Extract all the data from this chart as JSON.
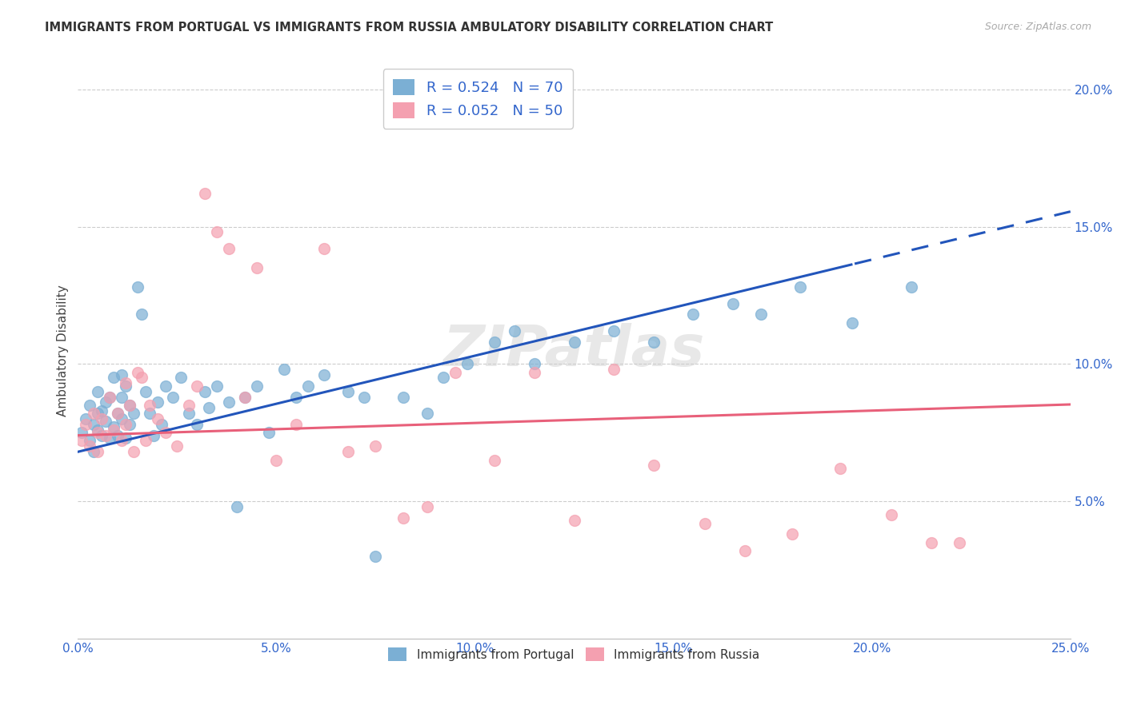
{
  "title": "IMMIGRANTS FROM PORTUGAL VS IMMIGRANTS FROM RUSSIA AMBULATORY DISABILITY CORRELATION CHART",
  "source": "Source: ZipAtlas.com",
  "ylabel": "Ambulatory Disability",
  "xlim": [
    0.0,
    0.25
  ],
  "ylim": [
    0.0,
    0.21
  ],
  "xticks": [
    0.0,
    0.05,
    0.1,
    0.15,
    0.2,
    0.25
  ],
  "yticks": [
    0.05,
    0.1,
    0.15,
    0.2
  ],
  "ytick_labels": [
    "5.0%",
    "10.0%",
    "15.0%",
    "20.0%"
  ],
  "xtick_labels": [
    "0.0%",
    "5.0%",
    "10.0%",
    "15.0%",
    "20.0%",
    "25.0%"
  ],
  "portugal_color": "#7BAFD4",
  "russia_color": "#F4A0B0",
  "line_portugal_color": "#2255BB",
  "line_russia_color": "#E8607A",
  "watermark": "ZIPatlas",
  "portugal_R": 0.524,
  "portugal_N": 70,
  "russia_R": 0.052,
  "russia_N": 50,
  "portugal_x": [
    0.001,
    0.002,
    0.003,
    0.003,
    0.004,
    0.004,
    0.005,
    0.005,
    0.005,
    0.006,
    0.006,
    0.007,
    0.007,
    0.008,
    0.008,
    0.009,
    0.009,
    0.01,
    0.01,
    0.011,
    0.011,
    0.011,
    0.012,
    0.012,
    0.013,
    0.013,
    0.014,
    0.015,
    0.016,
    0.017,
    0.018,
    0.019,
    0.02,
    0.021,
    0.022,
    0.024,
    0.026,
    0.028,
    0.03,
    0.032,
    0.033,
    0.035,
    0.038,
    0.04,
    0.042,
    0.045,
    0.048,
    0.052,
    0.055,
    0.058,
    0.062,
    0.068,
    0.072,
    0.075,
    0.082,
    0.088,
    0.092,
    0.098,
    0.105,
    0.11,
    0.115,
    0.125,
    0.135,
    0.145,
    0.155,
    0.165,
    0.172,
    0.182,
    0.195,
    0.21
  ],
  "portugal_y": [
    0.075,
    0.08,
    0.072,
    0.085,
    0.078,
    0.068,
    0.082,
    0.076,
    0.09,
    0.074,
    0.083,
    0.079,
    0.086,
    0.073,
    0.088,
    0.077,
    0.095,
    0.082,
    0.074,
    0.096,
    0.08,
    0.088,
    0.073,
    0.092,
    0.085,
    0.078,
    0.082,
    0.128,
    0.118,
    0.09,
    0.082,
    0.074,
    0.086,
    0.078,
    0.092,
    0.088,
    0.095,
    0.082,
    0.078,
    0.09,
    0.084,
    0.092,
    0.086,
    0.048,
    0.088,
    0.092,
    0.075,
    0.098,
    0.088,
    0.092,
    0.096,
    0.09,
    0.088,
    0.03,
    0.088,
    0.082,
    0.095,
    0.1,
    0.108,
    0.112,
    0.1,
    0.108,
    0.112,
    0.108,
    0.118,
    0.122,
    0.118,
    0.128,
    0.115,
    0.128
  ],
  "russia_x": [
    0.001,
    0.002,
    0.003,
    0.004,
    0.005,
    0.005,
    0.006,
    0.007,
    0.008,
    0.009,
    0.01,
    0.011,
    0.012,
    0.012,
    0.013,
    0.014,
    0.015,
    0.016,
    0.017,
    0.018,
    0.02,
    0.022,
    0.025,
    0.028,
    0.03,
    0.032,
    0.035,
    0.038,
    0.042,
    0.045,
    0.05,
    0.055,
    0.062,
    0.068,
    0.075,
    0.082,
    0.088,
    0.095,
    0.105,
    0.115,
    0.125,
    0.135,
    0.145,
    0.158,
    0.168,
    0.18,
    0.192,
    0.205,
    0.215,
    0.222
  ],
  "russia_y": [
    0.072,
    0.078,
    0.07,
    0.082,
    0.075,
    0.068,
    0.08,
    0.074,
    0.088,
    0.076,
    0.082,
    0.072,
    0.078,
    0.093,
    0.085,
    0.068,
    0.097,
    0.095,
    0.072,
    0.085,
    0.08,
    0.075,
    0.07,
    0.085,
    0.092,
    0.162,
    0.148,
    0.142,
    0.088,
    0.135,
    0.065,
    0.078,
    0.142,
    0.068,
    0.07,
    0.044,
    0.048,
    0.097,
    0.065,
    0.097,
    0.043,
    0.098,
    0.063,
    0.042,
    0.032,
    0.038,
    0.062,
    0.045,
    0.035,
    0.035
  ]
}
